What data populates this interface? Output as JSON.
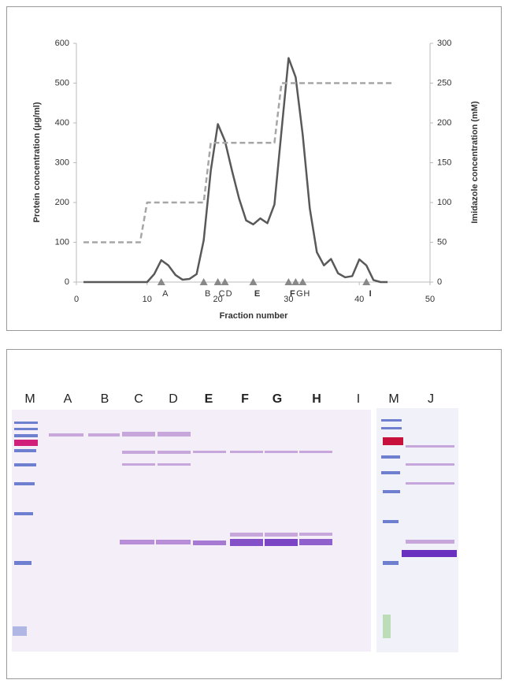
{
  "chart_data": {
    "type": "line",
    "xlabel": "Fraction number",
    "ylabel": "Protein concentration (µg/ml)",
    "y2label": "Imidazole concentration (mM)",
    "xlim": [
      0,
      50
    ],
    "xticks": [
      0,
      10,
      20,
      30,
      40,
      50
    ],
    "ylim": [
      0,
      600
    ],
    "yticks": [
      0,
      100,
      200,
      300,
      400,
      500,
      600
    ],
    "y2lim": [
      0,
      300
    ],
    "y2ticks": [
      0,
      50,
      100,
      150,
      200,
      250,
      300
    ],
    "grid": false,
    "series": [
      {
        "color": "#595959",
        "dash": false,
        "x": [
          1,
          2,
          3,
          4,
          5,
          6,
          7,
          8,
          9,
          10,
          11,
          12,
          13,
          14,
          15,
          16,
          17,
          18,
          19,
          20,
          21,
          22,
          23,
          24,
          25,
          26,
          27,
          28,
          29,
          30,
          31,
          32,
          33,
          34,
          35,
          36,
          37,
          38,
          39,
          40,
          41,
          42,
          43,
          44
        ],
        "values": [
          0,
          0,
          0,
          0,
          0,
          0,
          0,
          0,
          0,
          0,
          20,
          55,
          42,
          18,
          6,
          8,
          20,
          105,
          280,
          397,
          355,
          280,
          210,
          155,
          145,
          160,
          148,
          195,
          380,
          563,
          515,
          370,
          185,
          75,
          42,
          58,
          22,
          12,
          15,
          57,
          42,
          5,
          0,
          0
        ]
      },
      {
        "color": "#a6a6a6",
        "dash": true,
        "axis": "y2",
        "x": [
          1,
          9,
          10,
          18,
          19,
          28,
          29,
          45
        ],
        "values": [
          50,
          50,
          100,
          100,
          175,
          175,
          250,
          250
        ]
      }
    ],
    "markers": {
      "x": [
        12,
        18,
        20,
        21,
        25,
        30,
        31,
        32,
        41
      ],
      "labels": [
        "A",
        "B",
        "C",
        "D",
        "E",
        "F",
        "G",
        "H",
        "I"
      ]
    }
  },
  "gel": {
    "lanes": [
      "M",
      "A",
      "B",
      "C",
      "D",
      "E",
      "F",
      "G",
      "H",
      "I",
      "M",
      "J"
    ]
  }
}
